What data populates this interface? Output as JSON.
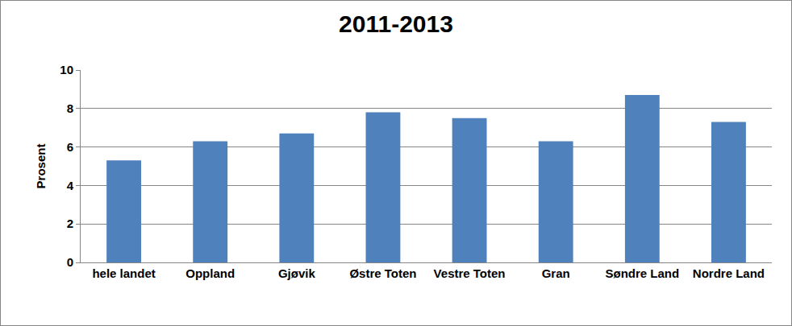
{
  "chart_data": {
    "type": "bar",
    "title": "2011-2013",
    "y_label": "Prosent",
    "categories": [
      "hele landet",
      "Oppland",
      "Gjøvik",
      "Østre Toten",
      "Vestre Toten",
      "Gran",
      "Søndre Land",
      "Nordre Land"
    ],
    "values": [
      5.3,
      6.3,
      6.7,
      7.8,
      7.5,
      6.3,
      8.7,
      7.3
    ],
    "color": "#4f81bd",
    "ylim": [
      0,
      10
    ],
    "yticks": [
      0,
      2,
      4,
      6,
      8,
      10
    ],
    "grid": true
  }
}
